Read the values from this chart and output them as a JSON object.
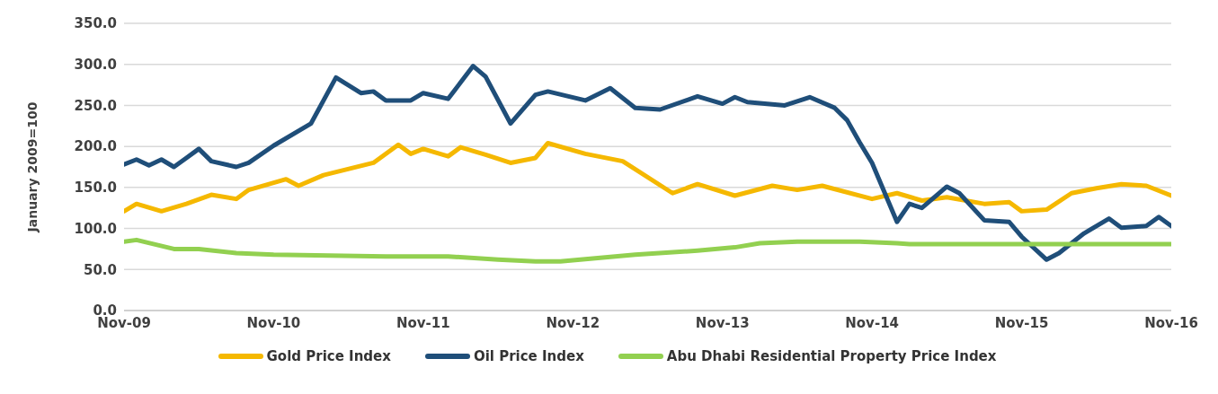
{
  "chart_data": {
    "type": "line",
    "ylabel": "January 2009=100",
    "xlim": [
      "2009-11",
      "2016-11"
    ],
    "xticks": [
      {
        "value": "2009-11",
        "label": "Nov-09"
      },
      {
        "value": "2010-11",
        "label": "Nov-10"
      },
      {
        "value": "2011-11",
        "label": "Nov-11"
      },
      {
        "value": "2012-11",
        "label": "Nov-12"
      },
      {
        "value": "2013-11",
        "label": "Nov-13"
      },
      {
        "value": "2014-11",
        "label": "Nov-14"
      },
      {
        "value": "2015-11",
        "label": "Nov-15"
      },
      {
        "value": "2016-11",
        "label": "Nov-16"
      }
    ],
    "ylim": [
      0,
      350
    ],
    "yticks": [
      {
        "value": 0,
        "label": "0.0"
      },
      {
        "value": 50,
        "label": "50.0"
      },
      {
        "value": 100,
        "label": "100.0"
      },
      {
        "value": 150,
        "label": "150.0"
      },
      {
        "value": 200,
        "label": "200.0"
      },
      {
        "value": 250,
        "label": "250.0"
      },
      {
        "value": 300,
        "label": "300.0"
      },
      {
        "value": 350,
        "label": "350.0"
      }
    ],
    "grid": "y",
    "legend": "bottom",
    "marker": "none",
    "line_style": "solid",
    "series": [
      {
        "name": "Gold Price Index",
        "color": "#f5b800",
        "x": [
          "2009-11",
          "2009-12",
          "2010-02",
          "2010-04",
          "2010-06",
          "2010-08",
          "2010-09",
          "2010-12",
          "2011-01",
          "2011-03",
          "2011-07",
          "2011-09",
          "2011-10",
          "2011-11",
          "2012-01",
          "2012-02",
          "2012-04",
          "2012-06",
          "2012-08",
          "2012-09",
          "2012-12",
          "2013-03",
          "2013-07",
          "2013-09",
          "2013-12",
          "2014-03",
          "2014-05",
          "2014-07",
          "2014-11",
          "2015-01",
          "2015-03",
          "2015-05",
          "2015-08",
          "2015-10",
          "2015-11",
          "2016-01",
          "2016-03",
          "2016-05",
          "2016-07",
          "2016-09",
          "2016-11"
        ],
        "values": [
          121,
          130,
          121,
          130,
          141,
          136,
          147,
          160,
          152,
          165,
          180,
          202,
          191,
          197,
          188,
          199,
          190,
          180,
          186,
          204,
          191,
          182,
          143,
          154,
          140,
          152,
          147,
          152,
          136,
          143,
          134,
          138,
          130,
          132,
          121,
          123,
          143,
          149,
          154,
          152,
          140
        ]
      },
      {
        "name": "Oil Price Index",
        "color": "#1f4e79",
        "x": [
          "2009-11",
          "2009-12",
          "2010-01",
          "2010-02",
          "2010-03",
          "2010-04",
          "2010-05",
          "2010-06",
          "2010-08",
          "2010-09",
          "2010-11",
          "2011-02",
          "2011-04",
          "2011-06",
          "2011-07",
          "2011-08",
          "2011-10",
          "2011-11",
          "2012-01",
          "2012-03",
          "2012-04",
          "2012-06",
          "2012-08",
          "2012-09",
          "2012-12",
          "2013-02",
          "2013-04",
          "2013-06",
          "2013-09",
          "2013-11",
          "2013-12",
          "2014-01",
          "2014-04",
          "2014-06",
          "2014-08",
          "2014-09",
          "2014-10",
          "2014-11",
          "2015-01",
          "2015-02",
          "2015-03",
          "2015-05",
          "2015-06",
          "2015-08",
          "2015-10",
          "2015-11",
          "2016-01",
          "2016-02",
          "2016-04",
          "2016-06",
          "2016-07",
          "2016-09",
          "2016-10",
          "2016-11"
        ],
        "values": [
          178,
          184,
          177,
          184,
          175,
          186,
          197,
          182,
          175,
          180,
          201,
          228,
          284,
          265,
          267,
          256,
          256,
          265,
          258,
          298,
          285,
          228,
          263,
          267,
          256,
          271,
          247,
          245,
          261,
          252,
          260,
          254,
          250,
          260,
          247,
          232,
          205,
          180,
          108,
          130,
          125,
          151,
          143,
          110,
          108,
          90,
          62,
          70,
          94,
          112,
          101,
          103,
          114,
          103
        ]
      },
      {
        "name": "Abu Dhabi Residential Property Price Index",
        "color": "#92d050",
        "x": [
          "2009-11",
          "2009-12",
          "2010-03",
          "2010-05",
          "2010-08",
          "2010-11",
          "2011-08",
          "2012-01",
          "2012-05",
          "2012-08",
          "2012-10",
          "2013-04",
          "2013-09",
          "2013-12",
          "2014-02",
          "2014-05",
          "2014-10",
          "2015-01",
          "2015-02",
          "2016-11"
        ],
        "values": [
          84,
          86,
          75,
          75,
          70,
          68,
          66,
          66,
          62,
          60,
          60,
          68,
          73,
          77,
          82,
          84,
          84,
          82,
          81,
          81
        ]
      }
    ]
  }
}
